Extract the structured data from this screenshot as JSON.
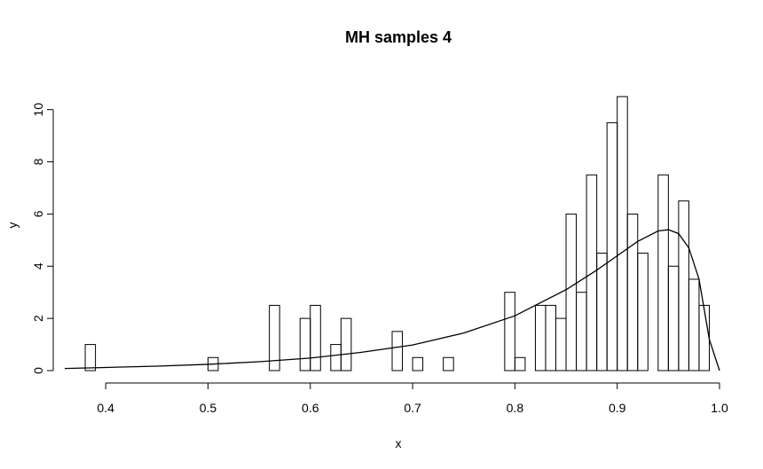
{
  "chart_data": {
    "type": "bar",
    "title": "MH samples 4",
    "xlabel": "x",
    "ylabel": "y",
    "xlim": [
      0.36,
      1.0
    ],
    "ylim": [
      0,
      10.6
    ],
    "xticks": [
      0.4,
      0.5,
      0.6,
      0.7,
      0.8,
      0.9,
      1.0
    ],
    "xtick_labels": [
      "0.4",
      "0.5",
      "0.6",
      "0.7",
      "0.8",
      "0.9",
      "1.0"
    ],
    "yticks": [
      0,
      2,
      4,
      6,
      8,
      10
    ],
    "ytick_labels": [
      "0",
      "2",
      "4",
      "6",
      "8",
      "10"
    ],
    "bin_width": 0.01,
    "histogram": [
      {
        "x0": 0.38,
        "x1": 0.39,
        "y": 1.0
      },
      {
        "x0": 0.5,
        "x1": 0.51,
        "y": 0.5
      },
      {
        "x0": 0.56,
        "x1": 0.57,
        "y": 2.5
      },
      {
        "x0": 0.59,
        "x1": 0.6,
        "y": 2.0
      },
      {
        "x0": 0.6,
        "x1": 0.61,
        "y": 2.5
      },
      {
        "x0": 0.62,
        "x1": 0.63,
        "y": 1.0
      },
      {
        "x0": 0.63,
        "x1": 0.64,
        "y": 2.0
      },
      {
        "x0": 0.68,
        "x1": 0.69,
        "y": 1.5
      },
      {
        "x0": 0.7,
        "x1": 0.71,
        "y": 0.5
      },
      {
        "x0": 0.73,
        "x1": 0.74,
        "y": 0.5
      },
      {
        "x0": 0.79,
        "x1": 0.8,
        "y": 3.0
      },
      {
        "x0": 0.8,
        "x1": 0.81,
        "y": 0.5
      },
      {
        "x0": 0.82,
        "x1": 0.83,
        "y": 2.5
      },
      {
        "x0": 0.83,
        "x1": 0.84,
        "y": 2.5
      },
      {
        "x0": 0.84,
        "x1": 0.85,
        "y": 2.0
      },
      {
        "x0": 0.85,
        "x1": 0.86,
        "y": 6.0
      },
      {
        "x0": 0.86,
        "x1": 0.87,
        "y": 3.0
      },
      {
        "x0": 0.87,
        "x1": 0.88,
        "y": 7.5
      },
      {
        "x0": 0.88,
        "x1": 0.89,
        "y": 4.5
      },
      {
        "x0": 0.89,
        "x1": 0.9,
        "y": 9.5
      },
      {
        "x0": 0.9,
        "x1": 0.91,
        "y": 10.5
      },
      {
        "x0": 0.91,
        "x1": 0.92,
        "y": 6.0
      },
      {
        "x0": 0.92,
        "x1": 0.93,
        "y": 4.5
      },
      {
        "x0": 0.94,
        "x1": 0.95,
        "y": 7.5
      },
      {
        "x0": 0.95,
        "x1": 0.96,
        "y": 4.0
      },
      {
        "x0": 0.96,
        "x1": 0.97,
        "y": 6.5
      },
      {
        "x0": 0.97,
        "x1": 0.98,
        "y": 3.5
      },
      {
        "x0": 0.98,
        "x1": 0.99,
        "y": 2.5
      }
    ],
    "density_curve": {
      "x": [
        0.36,
        0.4,
        0.45,
        0.5,
        0.55,
        0.6,
        0.65,
        0.7,
        0.75,
        0.8,
        0.85,
        0.88,
        0.9,
        0.92,
        0.94,
        0.95,
        0.96,
        0.97,
        0.98,
        0.99,
        1.0
      ],
      "y": [
        0.08,
        0.12,
        0.17,
        0.24,
        0.34,
        0.48,
        0.7,
        0.98,
        1.44,
        2.1,
        3.1,
        3.85,
        4.4,
        4.95,
        5.35,
        5.4,
        5.25,
        4.7,
        3.5,
        1.2,
        0.0
      ]
    },
    "grid": false,
    "legend": "none"
  }
}
